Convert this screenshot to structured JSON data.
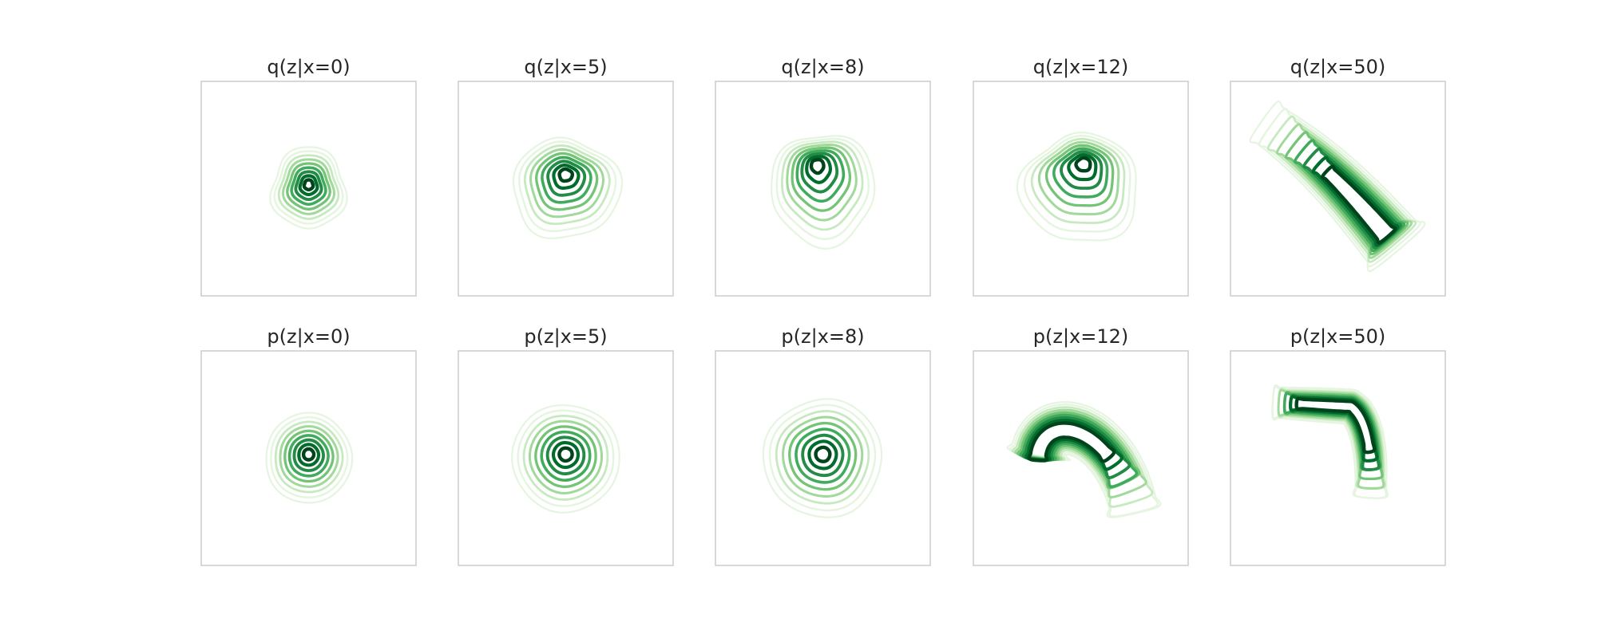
{
  "chart_data": {
    "type": "contour",
    "colormap": [
      "#f7fcf5",
      "#e5f5e0",
      "#c7e9c0",
      "#a1d99b",
      "#74c476",
      "#41ab5d",
      "#238b45",
      "#006d2c",
      "#00441b"
    ],
    "grid": false,
    "axes_visible": false,
    "rows": [
      {
        "name": "q",
        "panels": [
          {
            "title": "q(z|x=0)",
            "x": 0,
            "shape": "blob",
            "modes": [
              {
                "cx": 0.0,
                "cy": 0.05,
                "sx": 0.34,
                "sy": 0.38
              }
            ],
            "wobble": 0.1
          },
          {
            "title": "q(z|x=5)",
            "x": 5,
            "shape": "blob",
            "modes": [
              {
                "cx": 0.0,
                "cy": 0.18,
                "sx": 0.5,
                "sy": 0.46
              }
            ],
            "wobble": 0.08
          },
          {
            "title": "q(z|x=8)",
            "x": 8,
            "shape": "blob",
            "modes": [
              {
                "cx": -0.1,
                "cy": 0.3,
                "sx": 0.48,
                "sy": 0.52
              }
            ],
            "wobble": 0.08
          },
          {
            "title": "q(z|x=12)",
            "x": 12,
            "shape": "blob",
            "modes": [
              {
                "cx": 0.05,
                "cy": 0.32,
                "sx": 0.55,
                "sy": 0.5
              }
            ],
            "wobble": 0.09
          },
          {
            "title": "q(z|x=50)",
            "x": 50,
            "shape": "diag",
            "modes": [
              {
                "cx": 0.45,
                "cy": 0.1,
                "sx": 0.75,
                "sy": 0.28
              }
            ],
            "wobble": 0.04
          }
        ]
      },
      {
        "name": "p",
        "panels": [
          {
            "title": "p(z|x=0)",
            "x": 0,
            "shape": "blob",
            "modes": [
              {
                "cx": 0.0,
                "cy": 0.05,
                "sx": 0.4,
                "sy": 0.42
              }
            ],
            "wobble": 0.02
          },
          {
            "title": "p(z|x=5)",
            "x": 5,
            "shape": "blob",
            "modes": [
              {
                "cx": 0.0,
                "cy": 0.05,
                "sx": 0.5,
                "sy": 0.5
              }
            ],
            "wobble": 0.02
          },
          {
            "title": "p(z|x=8)",
            "x": 8,
            "shape": "blob",
            "modes": [
              {
                "cx": 0.0,
                "cy": 0.05,
                "sx": 0.55,
                "sy": 0.55
              }
            ],
            "wobble": 0.03
          },
          {
            "title": "p(z|x=12)",
            "x": 12,
            "shape": "hook",
            "modes": [
              {
                "cx": 0.0,
                "cy": 0.05,
                "sx": 0.6,
                "sy": 0.6
              }
            ],
            "wobble": 0.02
          },
          {
            "title": "p(z|x=50)",
            "x": 50,
            "shape": "elbow",
            "modes": [
              {
                "cx": 0.0,
                "cy": 0.0,
                "sx": 0.8,
                "sy": 0.75
              }
            ],
            "wobble": 0.02
          }
        ]
      }
    ]
  }
}
